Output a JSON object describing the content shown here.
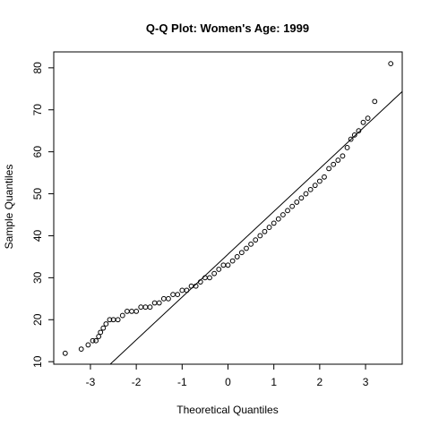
{
  "chart_data": {
    "type": "scatter",
    "title": "Q-Q Plot: Women's Age:  1999",
    "xlabel": "Theoretical Quantiles",
    "ylabel": "Sample Quantiles",
    "xlim": [
      -3.8,
      3.8
    ],
    "ylim": [
      9.4,
      83.8
    ],
    "x_ticks": [
      -3,
      -2,
      -1,
      0,
      1,
      2,
      3
    ],
    "x_tick_labels": [
      "-3",
      "-2",
      "-1",
      "0",
      "1",
      "2",
      "3"
    ],
    "y_ticks": [
      10,
      20,
      30,
      40,
      50,
      60,
      70,
      80
    ],
    "y_tick_labels": [
      "10",
      "20",
      "30",
      "40",
      "50",
      "60",
      "70",
      "80"
    ],
    "grid": false,
    "marker": "open-circle",
    "reference_line": {
      "intercept": 35.6,
      "slope": 10.2
    },
    "points_x": [
      -3.55,
      -3.2,
      -3.05,
      -2.95,
      -2.88,
      -2.82,
      -2.78,
      -2.72,
      -2.66,
      -2.58,
      -2.5,
      -2.4,
      -2.3,
      -2.2,
      -2.1,
      -2.0,
      -1.9,
      -1.8,
      -1.7,
      -1.6,
      -1.5,
      -1.4,
      -1.3,
      -1.2,
      -1.1,
      -1.0,
      -0.9,
      -0.8,
      -0.7,
      -0.6,
      -0.5,
      -0.4,
      -0.3,
      -0.2,
      -0.1,
      0.0,
      0.1,
      0.2,
      0.3,
      0.4,
      0.5,
      0.6,
      0.7,
      0.8,
      0.9,
      1.0,
      1.1,
      1.2,
      1.3,
      1.4,
      1.5,
      1.6,
      1.7,
      1.8,
      1.9,
      2.0,
      2.1,
      2.2,
      2.3,
      2.4,
      2.5,
      2.6,
      2.68,
      2.76,
      2.85,
      2.95,
      3.05,
      3.2,
      3.55
    ],
    "points_y": [
      12,
      13,
      14,
      15,
      15,
      16,
      17,
      18,
      19,
      20,
      20,
      20,
      21,
      22,
      22,
      22,
      23,
      23,
      23,
      24,
      24,
      25,
      25,
      26,
      26,
      27,
      27,
      28,
      28,
      29,
      30,
      30,
      31,
      32,
      33,
      33,
      34,
      35,
      36,
      37,
      38,
      39,
      40,
      41,
      42,
      43,
      44,
      45,
      46,
      47,
      48,
      49,
      50,
      51,
      52,
      53,
      54,
      56,
      57,
      58,
      59,
      61,
      63,
      64,
      65,
      67,
      68,
      72,
      81
    ]
  }
}
